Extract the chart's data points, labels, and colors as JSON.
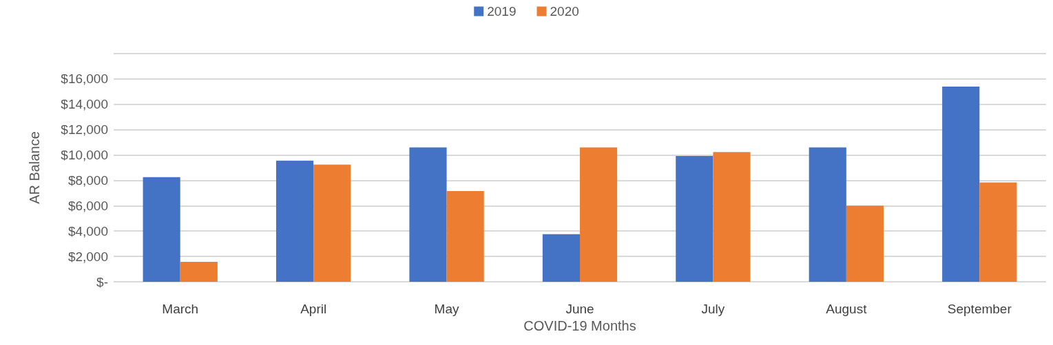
{
  "chart_data": {
    "type": "bar",
    "xlabel": "COVID-19 Months",
    "ylabel": "AR Balance",
    "categories": [
      "March",
      "April",
      "May",
      "June",
      "July",
      "August",
      "September"
    ],
    "series": [
      {
        "name": "2019",
        "color": "#4472c4",
        "values": [
          8250,
          9560,
          10600,
          3760,
          9920,
          10600,
          15400
        ]
      },
      {
        "name": "2020",
        "color": "#ed7d31",
        "values": [
          1570,
          9240,
          7150,
          10600,
          10230,
          6000,
          7830
        ]
      }
    ],
    "ylim": [
      0,
      18000
    ],
    "yticks": [
      {
        "value": 0,
        "label": "$-"
      },
      {
        "value": 2000,
        "label": "$2,000"
      },
      {
        "value": 4000,
        "label": "$4,000"
      },
      {
        "value": 6000,
        "label": "$6,000"
      },
      {
        "value": 8000,
        "label": "$8,000"
      },
      {
        "value": 10000,
        "label": "$10,000"
      },
      {
        "value": 12000,
        "label": "$12,000"
      },
      {
        "value": 14000,
        "label": "$14,000"
      },
      {
        "value": 16000,
        "label": "$16,000"
      },
      {
        "value": 18000,
        "label": null
      }
    ],
    "grid": "y",
    "legend": "top"
  }
}
